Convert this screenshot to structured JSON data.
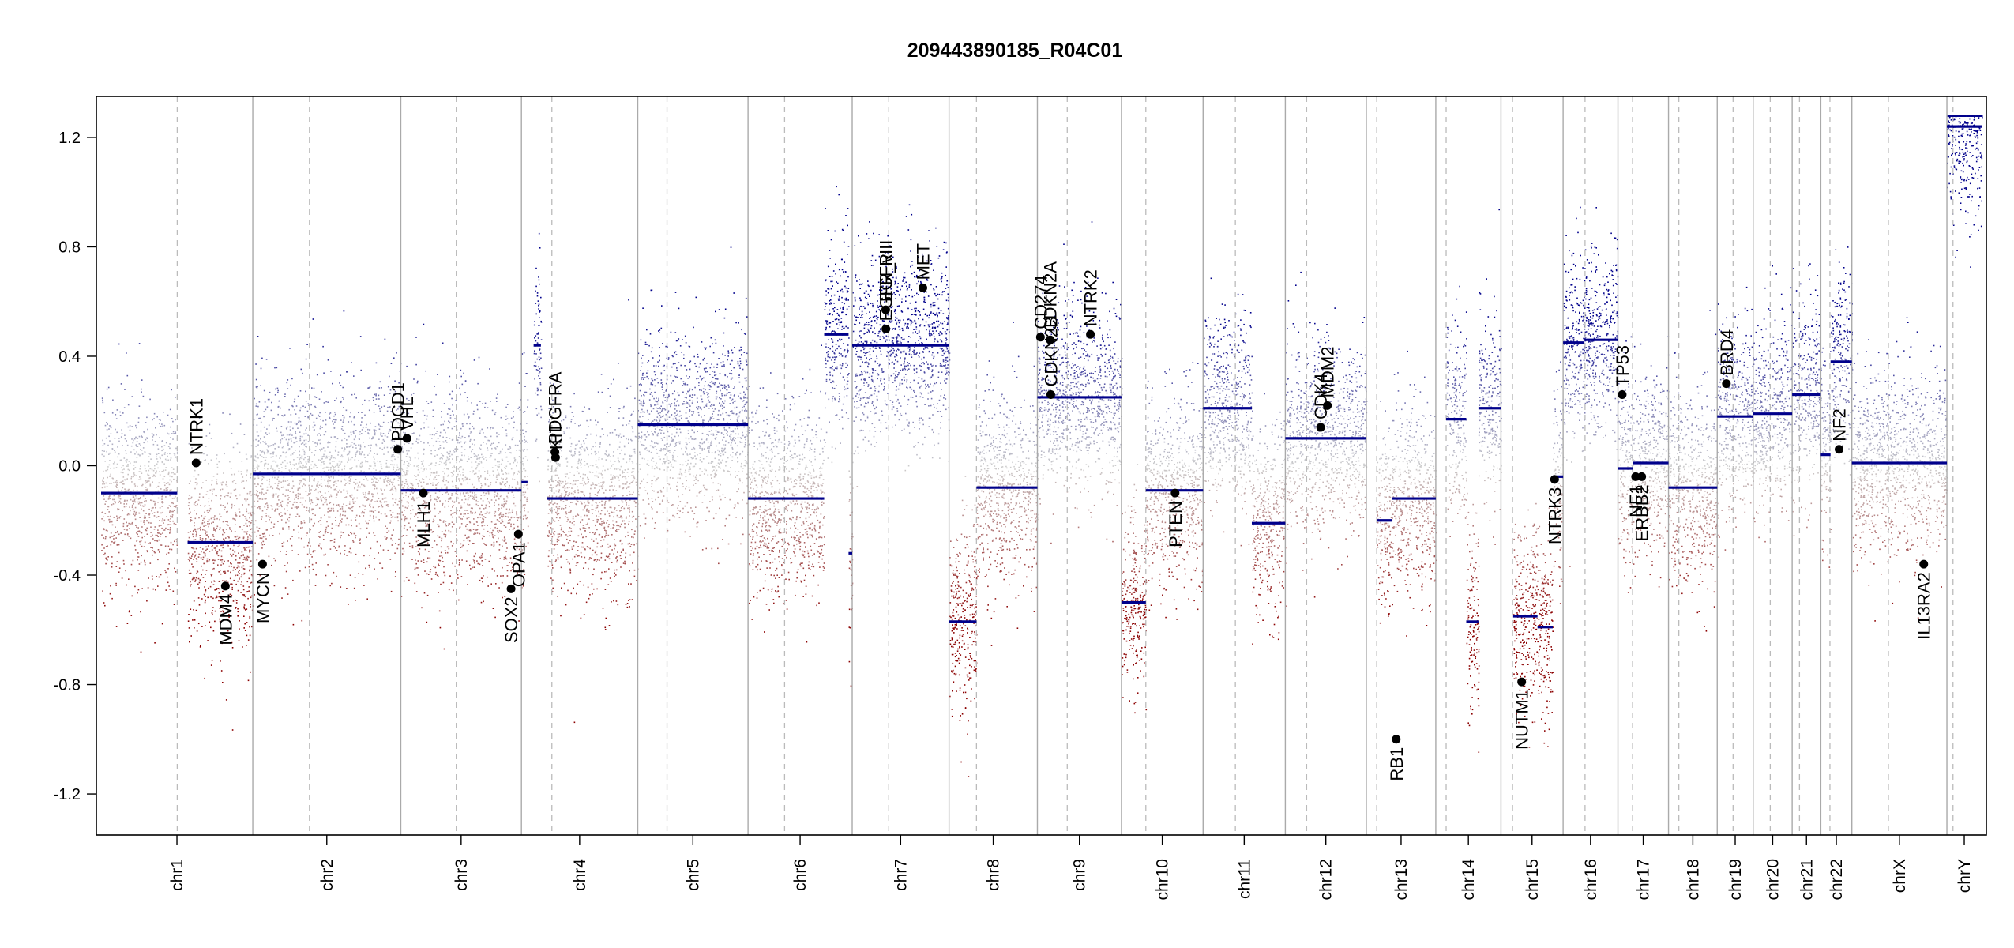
{
  "chart_data": {
    "type": "scatter",
    "title": "209443890185_R04C01",
    "xlabel": "",
    "ylabel": "",
    "ylim": [
      -1.35,
      1.35
    ],
    "yticks": [
      -1.2,
      -0.8,
      -0.4,
      0.0,
      0.4,
      0.8,
      1.2
    ],
    "ytick_labels": [
      "-1.2",
      "-0.8",
      "-0.4",
      "0.0",
      "0.4",
      "0.8",
      "1.2"
    ],
    "grid": false,
    "colors": {
      "gain": "#00008b",
      "loss": "#8b0000",
      "neutral": "#cccccc",
      "segment": "#00008b",
      "gene": "#000000",
      "boundary": "#aaaaaa"
    },
    "chromosomes": [
      {
        "name": "chr1",
        "size": 249,
        "centromere": 125
      },
      {
        "name": "chr2",
        "size": 243,
        "centromere": 93
      },
      {
        "name": "chr3",
        "size": 198,
        "centromere": 91
      },
      {
        "name": "chr4",
        "size": 191,
        "centromere": 50
      },
      {
        "name": "chr5",
        "size": 181,
        "centromere": 48
      },
      {
        "name": "chr6",
        "size": 171,
        "centromere": 60
      },
      {
        "name": "chr7",
        "size": 159,
        "centromere": 60
      },
      {
        "name": "chr8",
        "size": 145,
        "centromere": 45
      },
      {
        "name": "chr9",
        "size": 138,
        "centromere": 49
      },
      {
        "name": "chr10",
        "size": 134,
        "centromere": 40
      },
      {
        "name": "chr11",
        "size": 135,
        "centromere": 53
      },
      {
        "name": "chr12",
        "size": 133,
        "centromere": 35
      },
      {
        "name": "chr13",
        "size": 114,
        "centromere": 17
      },
      {
        "name": "chr14",
        "size": 107,
        "centromere": 17
      },
      {
        "name": "chr15",
        "size": 102,
        "centromere": 19
      },
      {
        "name": "chr16",
        "size": 90,
        "centromere": 36
      },
      {
        "name": "chr17",
        "size": 83,
        "centromere": 24
      },
      {
        "name": "chr18",
        "size": 80,
        "centromere": 17
      },
      {
        "name": "chr19",
        "size": 59,
        "centromere": 26
      },
      {
        "name": "chr20",
        "size": 64,
        "centromere": 28
      },
      {
        "name": "chr21",
        "size": 47,
        "centromere": 12
      },
      {
        "name": "chr22",
        "size": 51,
        "centromere": 15
      },
      {
        "name": "chrX",
        "size": 156,
        "centromere": 60
      },
      {
        "name": "chrY",
        "size": 57,
        "centromere": 10
      }
    ],
    "segments": [
      {
        "chr": "chr1",
        "start": 0,
        "end": 125,
        "value": -0.1
      },
      {
        "chr": "chr1",
        "start": 142,
        "end": 249,
        "value": -0.28
      },
      {
        "chr": "chr2",
        "start": 0,
        "end": 243,
        "value": -0.03
      },
      {
        "chr": "chr3",
        "start": 0,
        "end": 198,
        "value": -0.09
      },
      {
        "chr": "chr4",
        "start": 0,
        "end": 10,
        "value": -0.06
      },
      {
        "chr": "chr4",
        "start": 20,
        "end": 32,
        "value": 0.44
      },
      {
        "chr": "chr4",
        "start": 42,
        "end": 191,
        "value": -0.12
      },
      {
        "chr": "chr5",
        "start": 0,
        "end": 181,
        "value": 0.15
      },
      {
        "chr": "chr6",
        "start": 0,
        "end": 125,
        "value": -0.12
      },
      {
        "chr": "chr6",
        "start": 125,
        "end": 165,
        "value": 0.48
      },
      {
        "chr": "chr6",
        "start": 165,
        "end": 171,
        "value": -0.32
      },
      {
        "chr": "chr7",
        "start": 0,
        "end": 159,
        "value": 0.44
      },
      {
        "chr": "chr8",
        "start": 0,
        "end": 45,
        "value": -0.57
      },
      {
        "chr": "chr8",
        "start": 45,
        "end": 145,
        "value": -0.08
      },
      {
        "chr": "chr9",
        "start": 0,
        "end": 138,
        "value": 0.25
      },
      {
        "chr": "chr10",
        "start": 0,
        "end": 40,
        "value": -0.5
      },
      {
        "chr": "chr10",
        "start": 40,
        "end": 134,
        "value": -0.09
      },
      {
        "chr": "chr11",
        "start": 0,
        "end": 80,
        "value": 0.21
      },
      {
        "chr": "chr11",
        "start": 80,
        "end": 135,
        "value": -0.21
      },
      {
        "chr": "chr12",
        "start": 0,
        "end": 133,
        "value": 0.1
      },
      {
        "chr": "chr13",
        "start": 17,
        "end": 42,
        "value": -0.2
      },
      {
        "chr": "chr13",
        "start": 42,
        "end": 114,
        "value": -0.12
      },
      {
        "chr": "chr14",
        "start": 17,
        "end": 50,
        "value": 0.17
      },
      {
        "chr": "chr14",
        "start": 50,
        "end": 70,
        "value": -0.57
      },
      {
        "chr": "chr14",
        "start": 70,
        "end": 107,
        "value": 0.21
      },
      {
        "chr": "chr15",
        "start": 20,
        "end": 60,
        "value": -0.55
      },
      {
        "chr": "chr15",
        "start": 60,
        "end": 85,
        "value": -0.59
      },
      {
        "chr": "chr15",
        "start": 85,
        "end": 102,
        "value": -0.04
      },
      {
        "chr": "chr16",
        "start": 0,
        "end": 35,
        "value": 0.45
      },
      {
        "chr": "chr16",
        "start": 35,
        "end": 90,
        "value": 0.46
      },
      {
        "chr": "chr17",
        "start": 0,
        "end": 24,
        "value": -0.01
      },
      {
        "chr": "chr17",
        "start": 24,
        "end": 83,
        "value": 0.01
      },
      {
        "chr": "chr18",
        "start": 0,
        "end": 80,
        "value": -0.08
      },
      {
        "chr": "chr19",
        "start": 0,
        "end": 59,
        "value": 0.18
      },
      {
        "chr": "chr20",
        "start": 0,
        "end": 64,
        "value": 0.19
      },
      {
        "chr": "chr21",
        "start": 0,
        "end": 47,
        "value": 0.26
      },
      {
        "chr": "chr22",
        "start": 0,
        "end": 16,
        "value": 0.04
      },
      {
        "chr": "chr22",
        "start": 16,
        "end": 51,
        "value": 0.38
      },
      {
        "chr": "chrX",
        "start": 0,
        "end": 156,
        "value": 0.01
      },
      {
        "chr": "chrY",
        "start": 0,
        "end": 57,
        "value": 1.24
      }
    ],
    "genes": [
      {
        "name": "NTRK1",
        "chr": "chr1",
        "pos": 156,
        "value": 0.01
      },
      {
        "name": "MDM4",
        "chr": "chr1",
        "pos": 204,
        "value": -0.44
      },
      {
        "name": "MYCN",
        "chr": "chr2",
        "pos": 16,
        "value": -0.36
      },
      {
        "name": "PDCD1",
        "chr": "chr2",
        "pos": 238,
        "value": 0.06
      },
      {
        "name": "VHL",
        "chr": "chr3",
        "pos": 10,
        "value": 0.1
      },
      {
        "name": "MLH1",
        "chr": "chr3",
        "pos": 37,
        "value": -0.1
      },
      {
        "name": "SOX2",
        "chr": "chr3",
        "pos": 181,
        "value": -0.45
      },
      {
        "name": "OPA1",
        "chr": "chr3",
        "pos": 193,
        "value": -0.25
      },
      {
        "name": "PDGFRA",
        "chr": "chr4",
        "pos": 55,
        "value": 0.05
      },
      {
        "name": "KIT",
        "chr": "chr4",
        "pos": 56,
        "value": 0.03
      },
      {
        "name": "EGFR",
        "chr": "chr7",
        "pos": 55,
        "value": 0.57
      },
      {
        "name": "EGFR_vIII",
        "chr": "chr7",
        "pos": 55.3,
        "value": 0.5
      },
      {
        "name": "MET",
        "chr": "chr7",
        "pos": 116,
        "value": 0.65
      },
      {
        "name": "CD274",
        "chr": "chr9",
        "pos": 5,
        "value": 0.47
      },
      {
        "name": "CDKN2A",
        "chr": "chr9",
        "pos": 21,
        "value": 0.46
      },
      {
        "name": "CDKN2B",
        "chr": "chr9",
        "pos": 22,
        "value": 0.26
      },
      {
        "name": "NTRK2",
        "chr": "chr9",
        "pos": 87,
        "value": 0.48
      },
      {
        "name": "PTEN",
        "chr": "chr10",
        "pos": 88,
        "value": -0.1
      },
      {
        "name": "CDK4",
        "chr": "chr12",
        "pos": 58,
        "value": 0.14
      },
      {
        "name": "MDM2",
        "chr": "chr12",
        "pos": 69,
        "value": 0.22
      },
      {
        "name": "RB1",
        "chr": "chr13",
        "pos": 49,
        "value": -1.0
      },
      {
        "name": "NUTM1",
        "chr": "chr15",
        "pos": 34,
        "value": -0.79
      },
      {
        "name": "NTRK3",
        "chr": "chr15",
        "pos": 88,
        "value": -0.05
      },
      {
        "name": "TP53",
        "chr": "chr17",
        "pos": 7,
        "value": 0.26
      },
      {
        "name": "NF1",
        "chr": "chr17",
        "pos": 29,
        "value": -0.04
      },
      {
        "name": "ERBB2",
        "chr": "chr17",
        "pos": 39,
        "value": -0.04
      },
      {
        "name": "BRD4",
        "chr": "chr19",
        "pos": 15,
        "value": 0.3
      },
      {
        "name": "NF2",
        "chr": "chr22",
        "pos": 30,
        "value": 0.06
      },
      {
        "name": "IL13RA2",
        "chr": "chrX",
        "pos": 118,
        "value": -0.36
      }
    ]
  }
}
